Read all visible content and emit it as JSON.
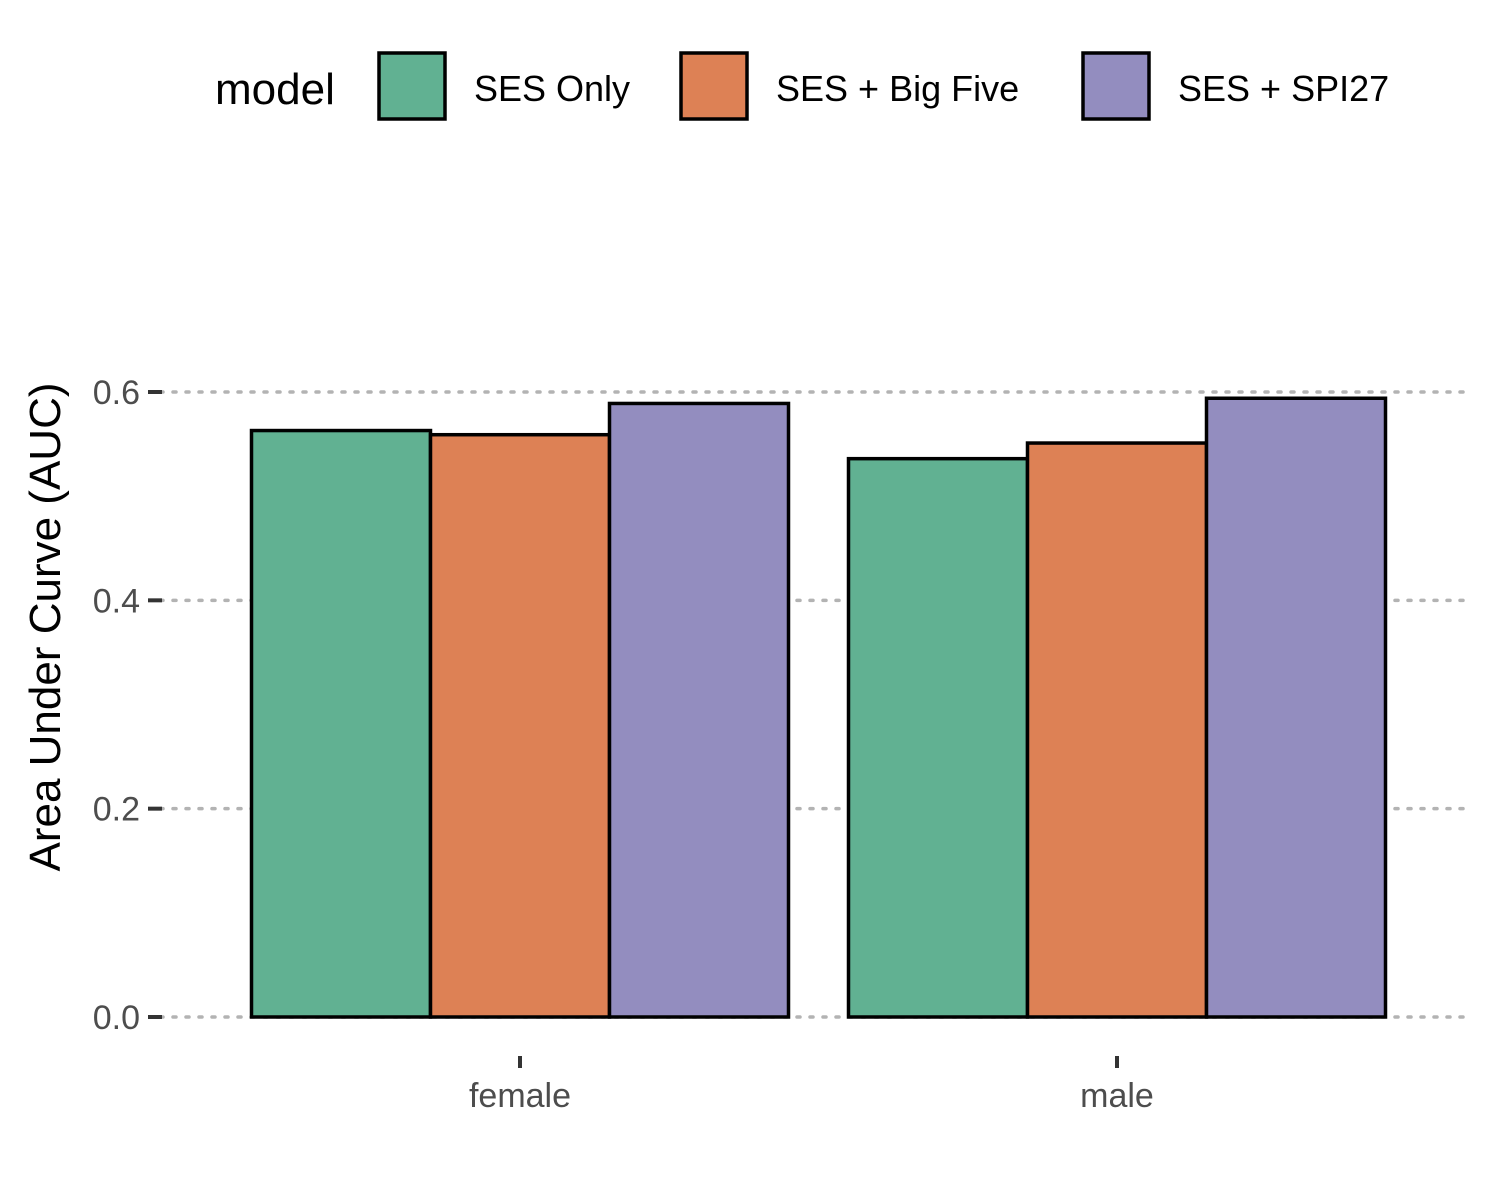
{
  "chart_data": {
    "type": "bar",
    "categories": [
      "female",
      "male"
    ],
    "series": [
      {
        "name": "SES Only",
        "color": "#61b192",
        "values": [
          0.563,
          0.536
        ]
      },
      {
        "name": "SES + Big Five",
        "color": "#dd8155",
        "values": [
          0.559,
          0.551
        ]
      },
      {
        "name": "SES + SPI27",
        "color": "#938dbf",
        "values": [
          0.589,
          0.594
        ]
      }
    ],
    "legend_title": "model",
    "legend_position": "top",
    "ylabel": "Area Under Curve (AUC)",
    "xlabel": "",
    "ylim": [
      0,
      0.6
    ],
    "yticks": [
      {
        "value": 0.0,
        "label": "0.0"
      },
      {
        "value": 0.2,
        "label": "0.2"
      },
      {
        "value": 0.4,
        "label": "0.4"
      },
      {
        "value": 0.6,
        "label": "0.6"
      }
    ],
    "grid": "horizontal-dotted"
  }
}
